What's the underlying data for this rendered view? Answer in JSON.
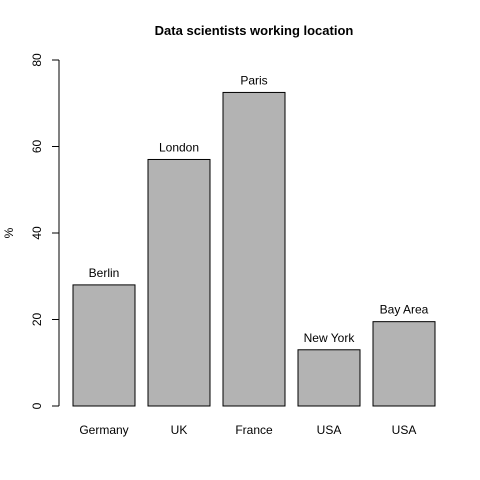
{
  "chart_data": {
    "type": "bar",
    "title": "Data scientists working location",
    "ylabel": "%",
    "xlabel": "",
    "categories": [
      "Germany",
      "UK",
      "France",
      "USA",
      "USA"
    ],
    "bar_labels": [
      "Berlin",
      "London",
      "Paris",
      "New York",
      "Bay Area"
    ],
    "values": [
      28,
      57,
      72.5,
      13,
      19.5
    ],
    "ylim": [
      0,
      80
    ],
    "yticks": [
      0,
      20,
      40,
      60,
      80
    ],
    "grid": false,
    "legend": "none",
    "bar_color": "#b3b3b3"
  }
}
